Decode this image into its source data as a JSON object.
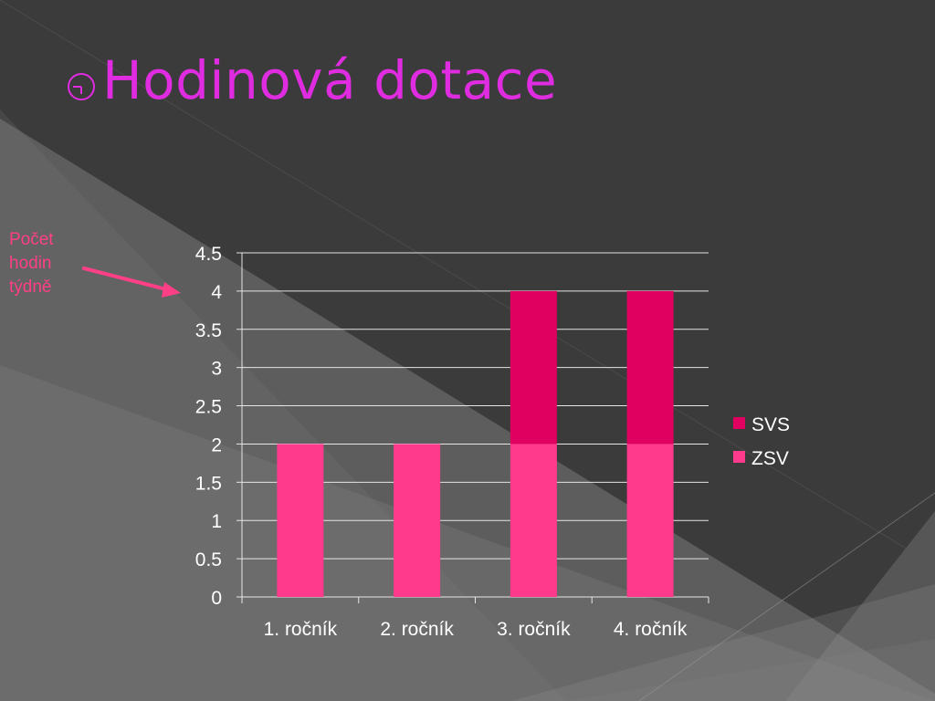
{
  "slide": {
    "title": "Hodinová dotace",
    "title_icon": "clock-bullet-icon",
    "annotation": [
      "Počet",
      "hodin",
      "týdně"
    ],
    "annotation_arrow_icon": "pink-arrow-icon",
    "title_color": "#e02ce0",
    "annotation_color": "#ff3f86"
  },
  "chart_data": {
    "type": "bar",
    "stacked": true,
    "categories": [
      "1. ročník",
      "2. ročník",
      "3. ročník",
      "4. ročník"
    ],
    "series": [
      {
        "name": "ZSV",
        "values": [
          2,
          2,
          2,
          2
        ],
        "color": "#ff3a8c"
      },
      {
        "name": "SVS",
        "values": [
          0,
          0,
          2,
          2
        ],
        "color": "#e0005f"
      }
    ],
    "yticks": [
      "0",
      "0.5",
      "1",
      "1.5",
      "2",
      "2.5",
      "3",
      "3.5",
      "4",
      "4.5"
    ],
    "ylim": [
      0,
      4.5
    ],
    "grid": true,
    "legend_position": "right",
    "legend_order": [
      "SVS",
      "ZSV"
    ]
  }
}
